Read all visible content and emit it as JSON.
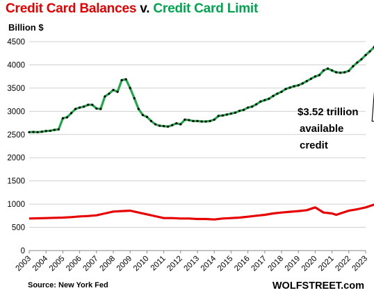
{
  "title": {
    "part1": "Credit Card Balances",
    "part2": " v. ",
    "part3": "Credit Card Limit",
    "color1": "#e60000",
    "color3": "#00a64f"
  },
  "unit_label": "Billion $",
  "annotation": [
    "$3.52 trillion",
    "available",
    "credit"
  ],
  "source": "Source: New York Fed",
  "brand": "WOLFSTREET.com",
  "chart_data": {
    "type": "line",
    "title": "Credit Card Balances v. Credit Card Limit",
    "ylabel": "Billion $",
    "ylim": [
      0,
      4500
    ],
    "yticks": [
      0,
      500,
      1000,
      1500,
      2000,
      2500,
      3000,
      3500,
      4000,
      4500
    ],
    "xlim": [
      2003.0,
      2023.0
    ],
    "xticks": [
      2003,
      2004,
      2005,
      2006,
      2007,
      2008,
      2009,
      2010,
      2011,
      2012,
      2013,
      2014,
      2015,
      2016,
      2017,
      2018,
      2019,
      2020,
      2021,
      2022,
      2023
    ],
    "grid": "horizontal",
    "series": [
      {
        "name": "Credit Card Limit",
        "color": "#1fa84a",
        "marker_color": "#000000",
        "points": [
          [
            2003.0,
            2550
          ],
          [
            2003.25,
            2555
          ],
          [
            2003.5,
            2550
          ],
          [
            2003.75,
            2560
          ],
          [
            2004.0,
            2575
          ],
          [
            2004.25,
            2580
          ],
          [
            2004.5,
            2600
          ],
          [
            2004.75,
            2610
          ],
          [
            2005.0,
            2850
          ],
          [
            2005.25,
            2870
          ],
          [
            2005.5,
            2960
          ],
          [
            2005.75,
            3050
          ],
          [
            2006.0,
            3080
          ],
          [
            2006.25,
            3100
          ],
          [
            2006.5,
            3140
          ],
          [
            2006.75,
            3140
          ],
          [
            2007.0,
            3060
          ],
          [
            2007.25,
            3050
          ],
          [
            2007.5,
            3320
          ],
          [
            2007.75,
            3380
          ],
          [
            2008.0,
            3460
          ],
          [
            2008.25,
            3420
          ],
          [
            2008.5,
            3670
          ],
          [
            2008.75,
            3690
          ],
          [
            2009.0,
            3500
          ],
          [
            2009.25,
            3280
          ],
          [
            2009.5,
            3050
          ],
          [
            2009.75,
            2920
          ],
          [
            2010.0,
            2880
          ],
          [
            2010.25,
            2790
          ],
          [
            2010.5,
            2720
          ],
          [
            2010.75,
            2690
          ],
          [
            2011.0,
            2680
          ],
          [
            2011.25,
            2670
          ],
          [
            2011.5,
            2700
          ],
          [
            2011.75,
            2740
          ],
          [
            2012.0,
            2720
          ],
          [
            2012.25,
            2820
          ],
          [
            2012.5,
            2810
          ],
          [
            2012.75,
            2790
          ],
          [
            2013.0,
            2790
          ],
          [
            2013.25,
            2780
          ],
          [
            2013.5,
            2780
          ],
          [
            2013.75,
            2790
          ],
          [
            2014.0,
            2820
          ],
          [
            2014.25,
            2900
          ],
          [
            2014.5,
            2910
          ],
          [
            2014.75,
            2930
          ],
          [
            2015.0,
            2950
          ],
          [
            2015.25,
            2970
          ],
          [
            2015.5,
            3010
          ],
          [
            2015.75,
            3030
          ],
          [
            2016.0,
            3080
          ],
          [
            2016.25,
            3100
          ],
          [
            2016.5,
            3150
          ],
          [
            2016.75,
            3210
          ],
          [
            2017.0,
            3240
          ],
          [
            2017.25,
            3270
          ],
          [
            2017.5,
            3330
          ],
          [
            2017.75,
            3380
          ],
          [
            2018.0,
            3420
          ],
          [
            2018.25,
            3480
          ],
          [
            2018.5,
            3510
          ],
          [
            2018.75,
            3540
          ],
          [
            2019.0,
            3560
          ],
          [
            2019.25,
            3600
          ],
          [
            2019.5,
            3650
          ],
          [
            2019.75,
            3700
          ],
          [
            2020.0,
            3750
          ],
          [
            2020.25,
            3780
          ],
          [
            2020.5,
            3880
          ],
          [
            2020.75,
            3920
          ],
          [
            2021.0,
            3880
          ],
          [
            2021.25,
            3840
          ],
          [
            2021.5,
            3830
          ],
          [
            2021.75,
            3840
          ],
          [
            2022.0,
            3870
          ],
          [
            2022.25,
            3970
          ],
          [
            2022.5,
            4050
          ],
          [
            2022.75,
            4120
          ],
          [
            2023.0,
            4210
          ],
          [
            2023.25,
            4290
          ],
          [
            2023.5,
            4380
          ],
          [
            2023.75,
            4520
          ]
        ]
      },
      {
        "name": "Credit Card Balances",
        "color": "#e60000",
        "points": [
          [
            2003.0,
            690
          ],
          [
            2003.5,
            695
          ],
          [
            2004.0,
            700
          ],
          [
            2004.5,
            705
          ],
          [
            2005.0,
            710
          ],
          [
            2005.5,
            720
          ],
          [
            2006.0,
            735
          ],
          [
            2006.5,
            745
          ],
          [
            2007.0,
            760
          ],
          [
            2007.5,
            800
          ],
          [
            2008.0,
            840
          ],
          [
            2008.5,
            850
          ],
          [
            2009.0,
            860
          ],
          [
            2009.5,
            820
          ],
          [
            2010.0,
            780
          ],
          [
            2010.5,
            740
          ],
          [
            2011.0,
            700
          ],
          [
            2011.5,
            700
          ],
          [
            2012.0,
            690
          ],
          [
            2012.5,
            690
          ],
          [
            2013.0,
            680
          ],
          [
            2013.5,
            680
          ],
          [
            2014.0,
            670
          ],
          [
            2014.5,
            690
          ],
          [
            2015.0,
            700
          ],
          [
            2015.5,
            710
          ],
          [
            2016.0,
            730
          ],
          [
            2016.5,
            750
          ],
          [
            2017.0,
            770
          ],
          [
            2017.5,
            800
          ],
          [
            2018.0,
            820
          ],
          [
            2018.5,
            835
          ],
          [
            2019.0,
            850
          ],
          [
            2019.5,
            870
          ],
          [
            2020.0,
            930
          ],
          [
            2020.5,
            820
          ],
          [
            2021.0,
            800
          ],
          [
            2021.25,
            770
          ],
          [
            2021.5,
            800
          ],
          [
            2022.0,
            860
          ],
          [
            2022.5,
            890
          ],
          [
            2023.0,
            930
          ],
          [
            2023.5,
            990
          ],
          [
            2023.75,
            986
          ]
        ]
      }
    ]
  }
}
